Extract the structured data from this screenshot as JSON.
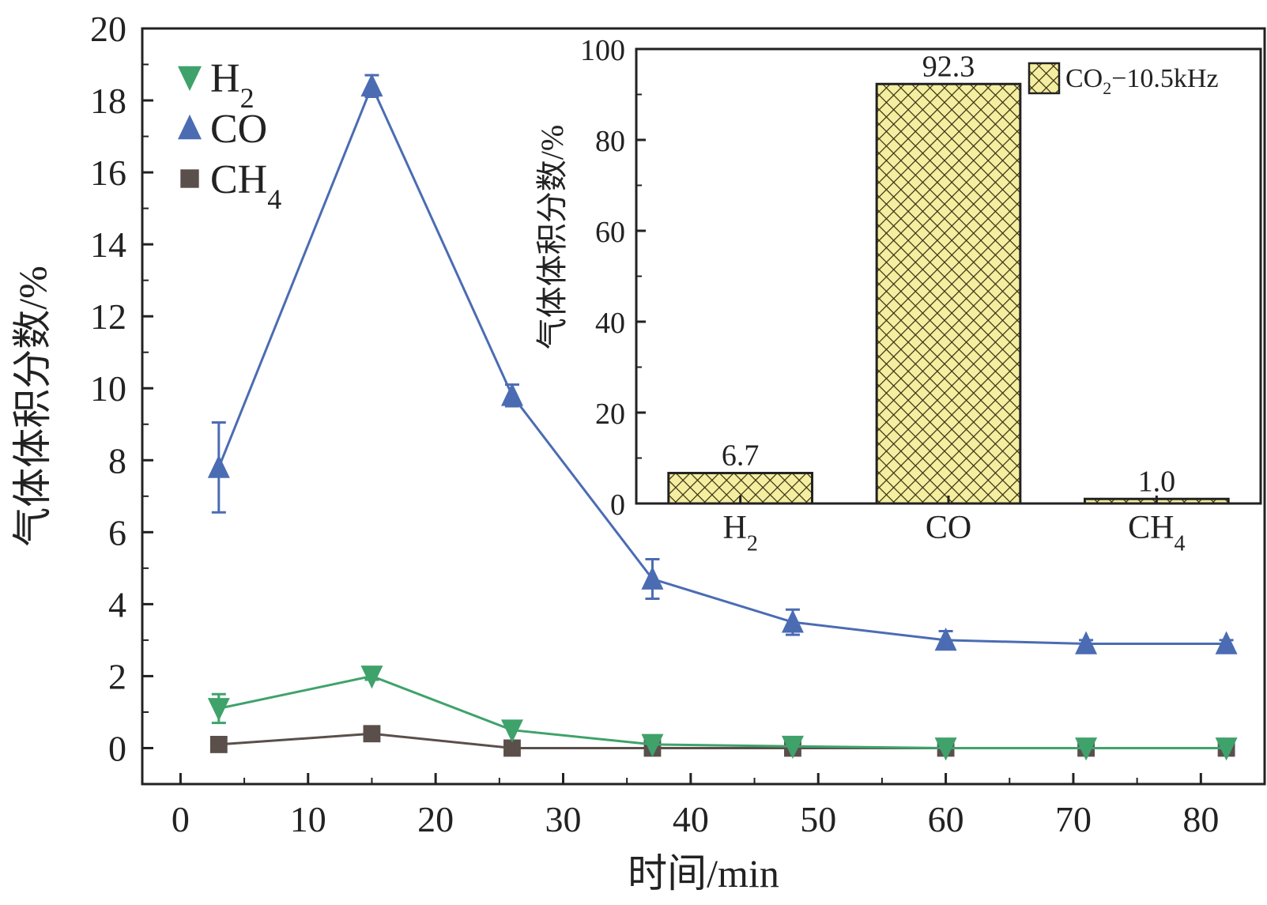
{
  "colors": {
    "H2": "#3fa26b",
    "CO": "#4b6cb3",
    "CH4": "#5a4f4b",
    "axis": "#222222",
    "bar_fill": "#f3efa0",
    "bar_hatch": "#3a2a10"
  },
  "chart_data": [
    {
      "type": "line",
      "xlabel": "时间/min",
      "ylabel": "气体体积分数/%",
      "xlim": [
        -3,
        85
      ],
      "ylim": [
        -1,
        20
      ],
      "xticks": [
        0,
        10,
        20,
        30,
        40,
        50,
        60,
        70,
        80
      ],
      "yticks": [
        0,
        2,
        4,
        6,
        8,
        10,
        12,
        14,
        16,
        18,
        20
      ],
      "legend_position": "top-left",
      "grid": false,
      "x": [
        3,
        15,
        26,
        37,
        48,
        60,
        71,
        82
      ],
      "series": [
        {
          "key": "H2",
          "name_base": "H",
          "name_sub": "2",
          "marker": "triangle-down",
          "values": [
            1.1,
            2.0,
            0.5,
            0.1,
            0.05,
            0.0,
            0.0,
            0.0
          ],
          "errors": [
            0.4,
            0.1,
            0.05,
            0.05,
            0.05,
            0.05,
            0.05,
            0.05
          ]
        },
        {
          "key": "CO",
          "name_base": "CO",
          "name_sub": "",
          "marker": "triangle-up",
          "values": [
            7.8,
            18.4,
            9.8,
            4.7,
            3.5,
            3.0,
            2.9,
            2.9
          ],
          "errors": [
            1.25,
            0.3,
            0.3,
            0.55,
            0.35,
            0.25,
            0.1,
            0.1
          ]
        },
        {
          "key": "CH4",
          "name_base": "CH",
          "name_sub": "4",
          "marker": "square",
          "values": [
            0.1,
            0.4,
            0.0,
            0.0,
            0.0,
            0.0,
            0.0,
            0.0
          ],
          "errors": [
            0,
            0,
            0,
            0,
            0,
            0,
            0,
            0
          ]
        }
      ]
    },
    {
      "type": "bar",
      "ylabel": "气体体积分数/%",
      "ylim": [
        0,
        100
      ],
      "yticks": [
        0,
        20,
        40,
        60,
        80,
        100
      ],
      "legend_position": "top-right",
      "categories": [
        {
          "base": "H",
          "sub": "2"
        },
        {
          "base": "CO",
          "sub": ""
        },
        {
          "base": "CH",
          "sub": "4"
        }
      ],
      "values": [
        6.7,
        92.3,
        1.0
      ],
      "value_labels": [
        "6.7",
        "92.3",
        "1.0"
      ],
      "legend": {
        "base": "CO",
        "sub": "2",
        "suffix": "−10.5kHz"
      }
    }
  ]
}
